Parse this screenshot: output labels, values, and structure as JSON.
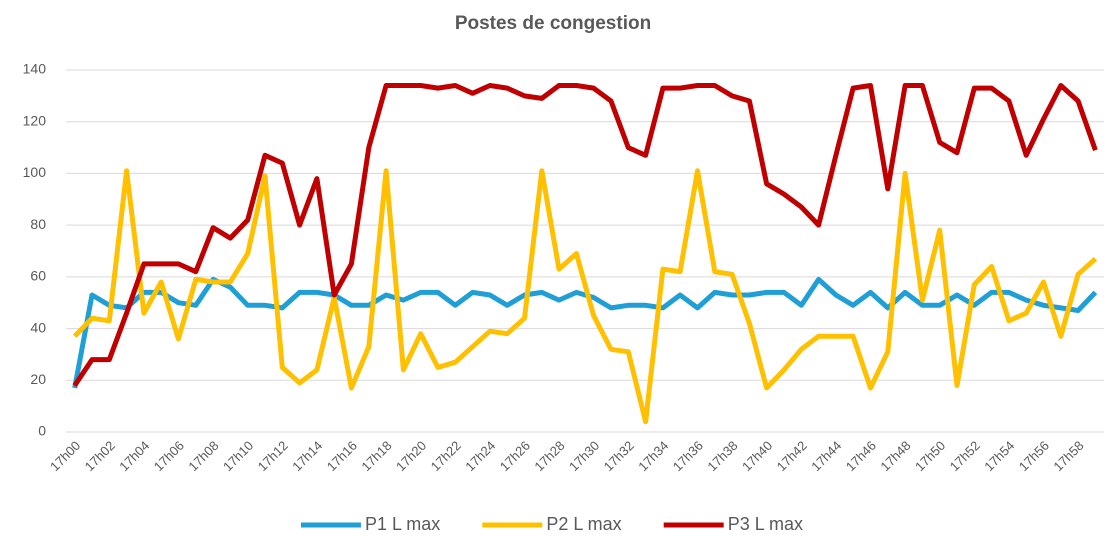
{
  "chart_data": {
    "type": "line",
    "title": "Postes de congestion",
    "categories": [
      "17h00",
      null,
      "17h02",
      null,
      "17h04",
      null,
      "17h06",
      null,
      "17h08",
      null,
      "17h10",
      null,
      "17h12",
      null,
      "17h14",
      null,
      "17h16",
      null,
      "17h18",
      null,
      "17h20",
      null,
      "17h22",
      null,
      "17h24",
      null,
      "17h26",
      null,
      "17h28",
      null,
      "17h30",
      null,
      "17h32",
      null,
      "17h34",
      null,
      "17h36",
      null,
      "17h38",
      null,
      "17h40",
      null,
      "17h42",
      null,
      "17h44",
      null,
      "17h46",
      null,
      "17h48",
      null,
      "17h50",
      null,
      "17h52",
      null,
      "17h54",
      null,
      "17h56",
      null,
      "17h58",
      null
    ],
    "series": [
      {
        "name": "P1 L max",
        "color": "#1f9fd6",
        "values": [
          17,
          53,
          49,
          48,
          54,
          54,
          50,
          49,
          59,
          56,
          49,
          49,
          48,
          54,
          54,
          53,
          49,
          49,
          53,
          51,
          54,
          54,
          49,
          54,
          53,
          49,
          53,
          54,
          51,
          54,
          52,
          48,
          49,
          49,
          48,
          53,
          48,
          54,
          53,
          53,
          54,
          54,
          49,
          59,
          53,
          49,
          54,
          48,
          54,
          49,
          49,
          53,
          49,
          54,
          54,
          51,
          49,
          48,
          47,
          54
        ]
      },
      {
        "name": "P2 L max",
        "color": "#ffc000",
        "values": [
          37,
          44,
          43,
          101,
          46,
          58,
          36,
          59,
          58,
          58,
          69,
          99,
          25,
          19,
          24,
          52,
          17,
          33,
          101,
          24,
          38,
          25,
          27,
          33,
          39,
          38,
          44,
          101,
          63,
          69,
          45,
          32,
          31,
          4,
          63,
          62,
          101,
          62,
          61,
          42,
          17,
          24,
          32,
          37,
          37,
          37,
          17,
          31,
          100,
          51,
          78,
          18,
          57,
          64,
          43,
          46,
          58,
          37,
          61,
          67
        ]
      },
      {
        "name": "P3 L max",
        "color": "#c00000",
        "values": [
          18,
          28,
          28,
          46,
          65,
          65,
          65,
          62,
          79,
          75,
          82,
          107,
          104,
          80,
          98,
          53,
          65,
          110,
          134,
          134,
          134,
          133,
          134,
          131,
          134,
          133,
          130,
          129,
          134,
          134,
          133,
          128,
          110,
          107,
          133,
          133,
          134,
          134,
          130,
          128,
          96,
          92,
          87,
          80,
          107,
          133,
          134,
          94,
          134,
          134,
          112,
          108,
          133,
          133,
          128,
          107,
          121,
          134,
          128,
          109
        ]
      }
    ],
    "ylim": [
      0,
      140
    ],
    "yticks": [
      0,
      20,
      40,
      60,
      80,
      100,
      120,
      140
    ],
    "grid": true,
    "legend": "bottom"
  }
}
